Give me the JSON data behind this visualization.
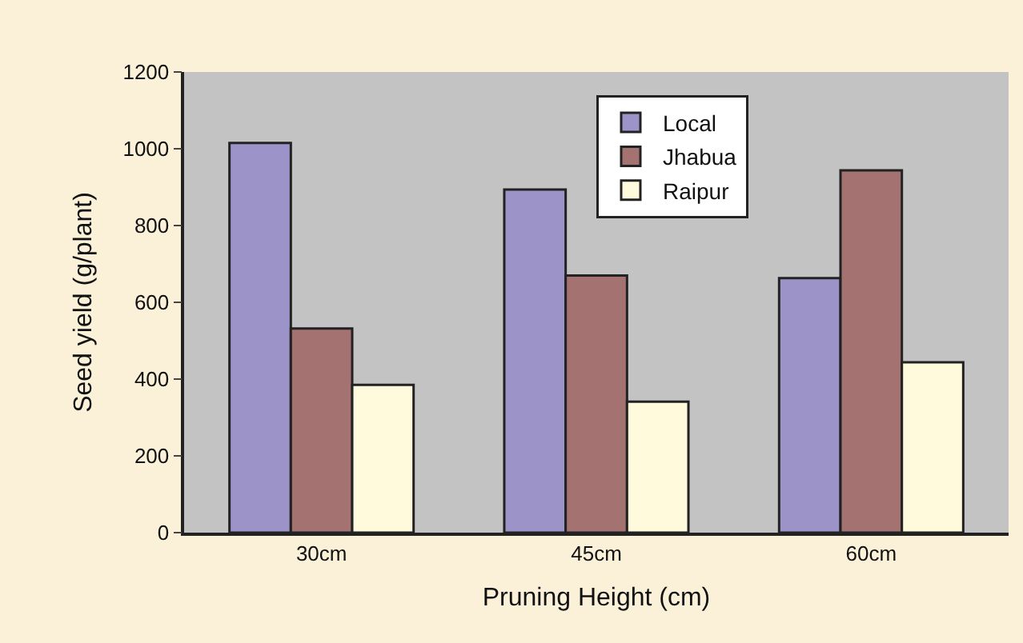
{
  "chart_data": {
    "type": "bar",
    "xlabel": "Pruning Height (cm)",
    "ylabel": "Seed yield (g/plant)",
    "categories": [
      "30cm",
      "45cm",
      "60cm"
    ],
    "series": [
      {
        "name": "Local",
        "color": "#9c94c8",
        "values": [
          1015,
          894,
          663
        ]
      },
      {
        "name": "Jhabua",
        "color": "#a57272",
        "values": [
          532,
          670,
          944
        ]
      },
      {
        "name": "Raipur",
        "color": "#fffadc",
        "values": [
          385,
          341,
          444
        ]
      }
    ],
    "ylim": [
      0,
      1200
    ],
    "yticks": [
      0,
      200,
      400,
      600,
      800,
      1000,
      1200
    ],
    "grid": false,
    "legend": "top"
  }
}
